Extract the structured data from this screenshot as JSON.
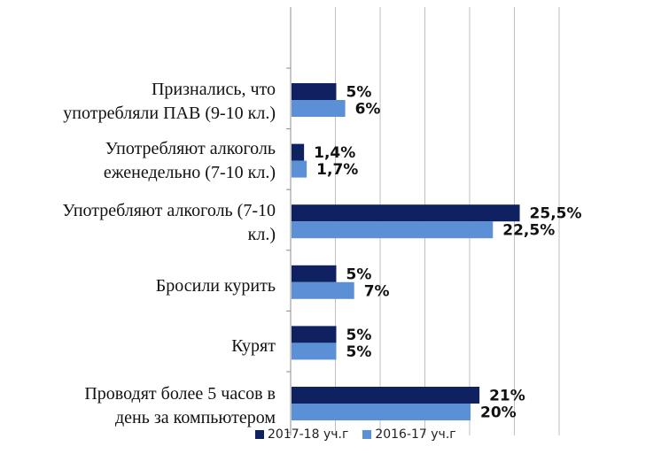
{
  "chart_data": {
    "type": "bar",
    "orientation": "horizontal",
    "categories": [
      "Признались, что\nупотребляли ПАВ (9-10 кл.)",
      "Употребляют алкоголь\nеженедельно (7-10 кл.)",
      "Употребляют алкоголь (7-10\nкл.)",
      "Бросили курить",
      "Курят",
      "Проводят более 5 часов в\nдень за компьютером"
    ],
    "series": [
      {
        "name": "2017-18 уч.г",
        "color": "#0f2160",
        "values": [
          5,
          1.4,
          25.5,
          5,
          5,
          21
        ],
        "labels": [
          "5%",
          "1,4%",
          "25,5%",
          "5%",
          "5%",
          "21%"
        ]
      },
      {
        "name": "2016-17 уч.г",
        "color": "#5b8fd6",
        "values": [
          6,
          1.7,
          22.5,
          7,
          5,
          20
        ],
        "labels": [
          "6%",
          "1,7%",
          "22,5%",
          "7%",
          "5%",
          "20%"
        ]
      }
    ],
    "xlim": [
      0,
      30
    ],
    "grid": "vertical",
    "legend": "bottom",
    "title": "",
    "xlabel": "",
    "ylabel": ""
  }
}
